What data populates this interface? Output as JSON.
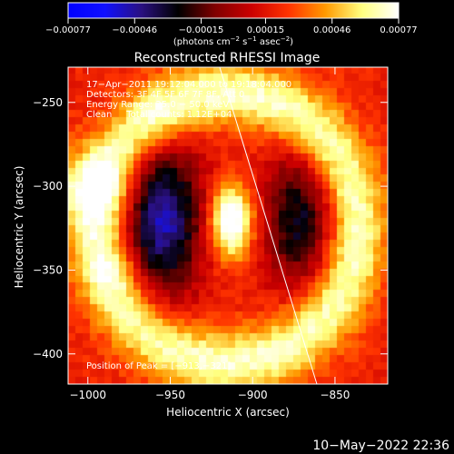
{
  "chart_data": {
    "type": "heatmap",
    "title": "Reconstructed RHESSI Image",
    "xlabel": "Heliocentric X (arcsec)",
    "ylabel": "Heliocentric Y (arcsec)",
    "xlim": [
      -1012,
      -818
    ],
    "ylim": [
      -418,
      -229
    ],
    "x_ticks": [
      {
        "value": -1000,
        "label": "−1000"
      },
      {
        "value": -950,
        "label": "−950"
      },
      {
        "value": -900,
        "label": "−900"
      },
      {
        "value": -850,
        "label": "−850"
      }
    ],
    "y_ticks": [
      {
        "value": -250,
        "label": "−250"
      },
      {
        "value": -300,
        "label": "−300"
      },
      {
        "value": -350,
        "label": "−350"
      },
      {
        "value": -400,
        "label": "−400"
      }
    ],
    "colorbar": {
      "range": [
        -0.00077,
        0.00077
      ],
      "ticks": [
        {
          "value": -0.00077,
          "label": "−0.00077"
        },
        {
          "value": -0.00046,
          "label": "−0.00046"
        },
        {
          "value": -0.00015,
          "label": "−0.00015"
        },
        {
          "value": 0.00015,
          "label": "0.00015"
        },
        {
          "value": 0.00046,
          "label": "0.00046"
        },
        {
          "value": 0.00077,
          "label": "0.00077"
        }
      ],
      "colors": [
        "#0000ff",
        "#1010ff",
        "#2a1080",
        "#000000",
        "#800000",
        "#cc0000",
        "#ff3300",
        "#ff9900",
        "#ffff80",
        "#ffffff"
      ]
    },
    "info_lines": [
      "17−Apr−2011 19:12:04.000 to 19:18:04.000",
      "Detectors: 3F 4F 5F 6F 7F 8F, Att 0",
      "Energy Range: 25.0 − 50.0 keV",
      "Clean     Total counts: 1.12E+04"
    ],
    "peak_label": "Position of Peak = [−913,−321]",
    "peak": {
      "x": -913,
      "y": -321
    },
    "limb_line": [
      {
        "x": -920,
        "y": -229
      },
      {
        "x": -861,
        "y": -418
      }
    ],
    "image_model": {
      "background": 0.0002,
      "ring": {
        "center_x": -915,
        "center_y": -325,
        "radius_x": 78,
        "radius_y": 80,
        "width": 13,
        "amplitude": 0.0005
      },
      "ring_hot_spots": [
        {
          "x": -1000,
          "y": -300,
          "sigma": 16,
          "amplitude": 0.00035
        },
        {
          "x": -985,
          "y": -350,
          "sigma": 12,
          "amplitude": 0.00015
        },
        {
          "x": -960,
          "y": -255,
          "sigma": 12,
          "amplitude": 0.00012
        }
      ],
      "core": {
        "x": -913,
        "y": -321,
        "sigma_x": 9,
        "sigma_y": 15,
        "amplitude": 0.00072
      },
      "negative_lobes": [
        {
          "x": -955,
          "y": -320,
          "sigma_x": 17,
          "sigma_y": 32,
          "amplitude": -0.0007
        },
        {
          "x": -872,
          "y": -320,
          "sigma_x": 15,
          "sigma_y": 28,
          "amplitude": -0.0005
        }
      ]
    }
  },
  "footer": {
    "timestamp": "10−May−2022 22:36"
  },
  "colors": {
    "background": "#000000",
    "foreground": "#ffffff",
    "limb_line": "#ffffff"
  }
}
